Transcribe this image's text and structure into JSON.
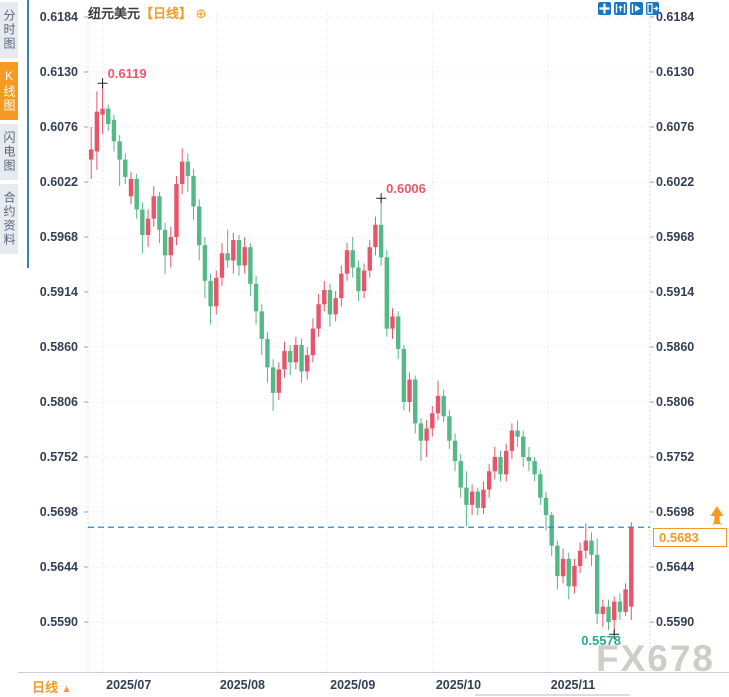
{
  "header": {
    "title": "纽元美元",
    "timeframe_tag": "【日线】",
    "add_symbol": "⊕"
  },
  "sidebar": {
    "tabs": [
      {
        "label": "分时图",
        "active": false
      },
      {
        "label": "K线图",
        "active": true
      },
      {
        "label": "闪电图",
        "active": false
      },
      {
        "label": "合约资料",
        "active": false
      }
    ]
  },
  "toolbar": {
    "icons": [
      {
        "name": "pan-move-icon"
      },
      {
        "name": "zoom-range-icon"
      },
      {
        "name": "zoom-play-icon"
      },
      {
        "name": "export-icon"
      }
    ]
  },
  "bottom_bar": {
    "timeframe_label": "日线",
    "arrow": "▲"
  },
  "watermark": "FX678",
  "colors": {
    "up": "#e8546a",
    "down": "#53b987",
    "accent_orange": "#f59a23",
    "dashed_line": "#2286e3",
    "annotation_high": "#f0556d",
    "annotation_low": "#2ca98e",
    "icon_blue": "#1777c4",
    "grid": "#e4e4e8",
    "axis": "#c6cad2",
    "label_text": "#343f55"
  },
  "chart_data": {
    "type": "candlestick",
    "title": "纽元美元 日线 (NZD/USD daily)",
    "timeframe": "日线",
    "up_means": "close>=open (red, Chinese convention)",
    "y_ticks": [
      "0.6184",
      "0.6130",
      "0.6076",
      "0.6022",
      "0.5968",
      "0.5914",
      "0.5860",
      "0.5806",
      "0.5752",
      "0.5698",
      "0.5644",
      "0.5590"
    ],
    "y_range": [
      0.559,
      0.6184
    ],
    "x_ticks": [
      {
        "label": "2025/07",
        "candle_index": 2.1
      },
      {
        "label": "2025/08",
        "candle_index": 22.1
      },
      {
        "label": "2025/09",
        "candle_index": 41.5
      },
      {
        "label": "2025/10",
        "candle_index": 60.1
      },
      {
        "label": "2025/11",
        "candle_index": 80.3
      }
    ],
    "current_price": {
      "value": "0.5683",
      "price": 0.5683
    },
    "annotations": [
      {
        "label": "0.6119",
        "price": 0.6119,
        "candle_index": 2,
        "kind": "high"
      },
      {
        "label": "0.6006",
        "price": 0.6006,
        "candle_index": 51,
        "kind": "high"
      },
      {
        "label": "0.5578",
        "price": 0.5578,
        "candle_index": 92,
        "kind": "low"
      }
    ],
    "candles": [
      [
        0.6044,
        0.6076,
        0.6025,
        0.6054
      ],
      [
        0.6052,
        0.6111,
        0.6034,
        0.6091
      ],
      [
        0.6088,
        0.6119,
        0.6069,
        0.6094
      ],
      [
        0.6094,
        0.6098,
        0.6072,
        0.6079
      ],
      [
        0.6083,
        0.6088,
        0.6052,
        0.6062
      ],
      [
        0.6062,
        0.6068,
        0.6018,
        0.6044
      ],
      [
        0.6044,
        0.605,
        0.602,
        0.6027
      ],
      [
        0.6008,
        0.6032,
        0.6,
        0.6025
      ],
      [
        0.6025,
        0.603,
        0.5986,
        0.5995
      ],
      [
        0.5995,
        0.6002,
        0.5952,
        0.597
      ],
      [
        0.597,
        0.5995,
        0.5958,
        0.5986
      ],
      [
        0.5986,
        0.6018,
        0.5978,
        0.6008
      ],
      [
        0.6008,
        0.6012,
        0.5962,
        0.5975
      ],
      [
        0.5975,
        0.5982,
        0.5932,
        0.595
      ],
      [
        0.595,
        0.5978,
        0.5938,
        0.5968
      ],
      [
        0.5968,
        0.6028,
        0.596,
        0.602
      ],
      [
        0.602,
        0.6055,
        0.601,
        0.6042
      ],
      [
        0.6042,
        0.605,
        0.6012,
        0.6028
      ],
      [
        0.6028,
        0.6035,
        0.5985,
        0.5998
      ],
      [
        0.5998,
        0.6005,
        0.5945,
        0.596
      ],
      [
        0.596,
        0.5968,
        0.5908,
        0.5925
      ],
      [
        0.5925,
        0.5932,
        0.5882,
        0.59
      ],
      [
        0.59,
        0.5935,
        0.5892,
        0.5928
      ],
      [
        0.5928,
        0.5962,
        0.592,
        0.5952
      ],
      [
        0.5952,
        0.5975,
        0.5938,
        0.5945
      ],
      [
        0.5945,
        0.5972,
        0.5932,
        0.5965
      ],
      [
        0.5965,
        0.597,
        0.593,
        0.594
      ],
      [
        0.594,
        0.5968,
        0.5932,
        0.5958
      ],
      [
        0.5958,
        0.5962,
        0.591,
        0.5922
      ],
      [
        0.5922,
        0.593,
        0.5882,
        0.5895
      ],
      [
        0.5895,
        0.5902,
        0.5852,
        0.5868
      ],
      [
        0.5868,
        0.5875,
        0.5825,
        0.584
      ],
      [
        0.584,
        0.5848,
        0.5797,
        0.5815
      ],
      [
        0.5815,
        0.5845,
        0.5808,
        0.5838
      ],
      [
        0.5838,
        0.5865,
        0.583,
        0.5856
      ],
      [
        0.5856,
        0.5862,
        0.5832,
        0.5845
      ],
      [
        0.5845,
        0.587,
        0.5838,
        0.5862
      ],
      [
        0.5862,
        0.5868,
        0.5825,
        0.5836
      ],
      [
        0.5836,
        0.586,
        0.5828,
        0.5852
      ],
      [
        0.5852,
        0.5888,
        0.5845,
        0.5878
      ],
      [
        0.5878,
        0.5912,
        0.587,
        0.5902
      ],
      [
        0.5902,
        0.5925,
        0.5895,
        0.5916
      ],
      [
        0.5916,
        0.5922,
        0.588,
        0.5892
      ],
      [
        0.5892,
        0.5915,
        0.5885,
        0.5908
      ],
      [
        0.5908,
        0.594,
        0.59,
        0.5932
      ],
      [
        0.5932,
        0.5962,
        0.5925,
        0.5955
      ],
      [
        0.5955,
        0.5968,
        0.5928,
        0.5938
      ],
      [
        0.5938,
        0.5945,
        0.5905,
        0.5915
      ],
      [
        0.5915,
        0.5942,
        0.5908,
        0.5935
      ],
      [
        0.5935,
        0.5965,
        0.5928,
        0.5958
      ],
      [
        0.5958,
        0.5988,
        0.595,
        0.598
      ],
      [
        0.598,
        0.6006,
        0.594,
        0.5948
      ],
      [
        0.5948,
        0.5955,
        0.587,
        0.5878
      ],
      [
        0.5878,
        0.5898,
        0.5868,
        0.589
      ],
      [
        0.589,
        0.5895,
        0.5848,
        0.5858
      ],
      [
        0.5858,
        0.5862,
        0.5798,
        0.5806
      ],
      [
        0.5806,
        0.5835,
        0.5796,
        0.5828
      ],
      [
        0.5828,
        0.5832,
        0.5775,
        0.5785
      ],
      [
        0.5785,
        0.579,
        0.5748,
        0.5768
      ],
      [
        0.5768,
        0.5788,
        0.5752,
        0.578
      ],
      [
        0.578,
        0.5802,
        0.5772,
        0.5795
      ],
      [
        0.5795,
        0.5827,
        0.5788,
        0.5812
      ],
      [
        0.5812,
        0.5818,
        0.5786,
        0.5792
      ],
      [
        0.5792,
        0.5798,
        0.576,
        0.5768
      ],
      [
        0.5768,
        0.5775,
        0.5738,
        0.5748
      ],
      [
        0.5748,
        0.5755,
        0.5712,
        0.5722
      ],
      [
        0.5722,
        0.5738,
        0.5684,
        0.5705
      ],
      [
        0.5705,
        0.5725,
        0.5695,
        0.5718
      ],
      [
        0.5718,
        0.5722,
        0.5695,
        0.5702
      ],
      [
        0.5702,
        0.5728,
        0.5696,
        0.572
      ],
      [
        0.572,
        0.5745,
        0.5712,
        0.5738
      ],
      [
        0.5738,
        0.5762,
        0.573,
        0.5752
      ],
      [
        0.5752,
        0.5758,
        0.5728,
        0.5735
      ],
      [
        0.5735,
        0.5765,
        0.5728,
        0.5758
      ],
      [
        0.5758,
        0.5785,
        0.575,
        0.5778
      ],
      [
        0.5778,
        0.5788,
        0.5762,
        0.5772
      ],
      [
        0.5772,
        0.5778,
        0.5742,
        0.5752
      ],
      [
        0.5752,
        0.5762,
        0.5738,
        0.5748
      ],
      [
        0.5748,
        0.5752,
        0.5728,
        0.5735
      ],
      [
        0.5735,
        0.574,
        0.5705,
        0.5712
      ],
      [
        0.5712,
        0.5718,
        0.568,
        0.5695
      ],
      [
        0.5695,
        0.5698,
        0.5655,
        0.5665
      ],
      [
        0.5665,
        0.567,
        0.5622,
        0.5635
      ],
      [
        0.5635,
        0.5662,
        0.5628,
        0.5652
      ],
      [
        0.5652,
        0.5658,
        0.5612,
        0.5625
      ],
      [
        0.5625,
        0.5652,
        0.5618,
        0.5645
      ],
      [
        0.5645,
        0.5668,
        0.5638,
        0.566
      ],
      [
        0.566,
        0.5687,
        0.5652,
        0.567
      ],
      [
        0.567,
        0.5678,
        0.5645,
        0.5656
      ],
      [
        0.5656,
        0.5672,
        0.5588,
        0.5598
      ],
      [
        0.5598,
        0.5612,
        0.5585,
        0.5605
      ],
      [
        0.5605,
        0.5612,
        0.5582,
        0.559
      ],
      [
        0.5592,
        0.5615,
        0.5578,
        0.561
      ],
      [
        0.561,
        0.5618,
        0.5592,
        0.56
      ],
      [
        0.56,
        0.5628,
        0.5596,
        0.5622
      ],
      [
        0.5605,
        0.5688,
        0.5592,
        0.5683
      ]
    ]
  }
}
